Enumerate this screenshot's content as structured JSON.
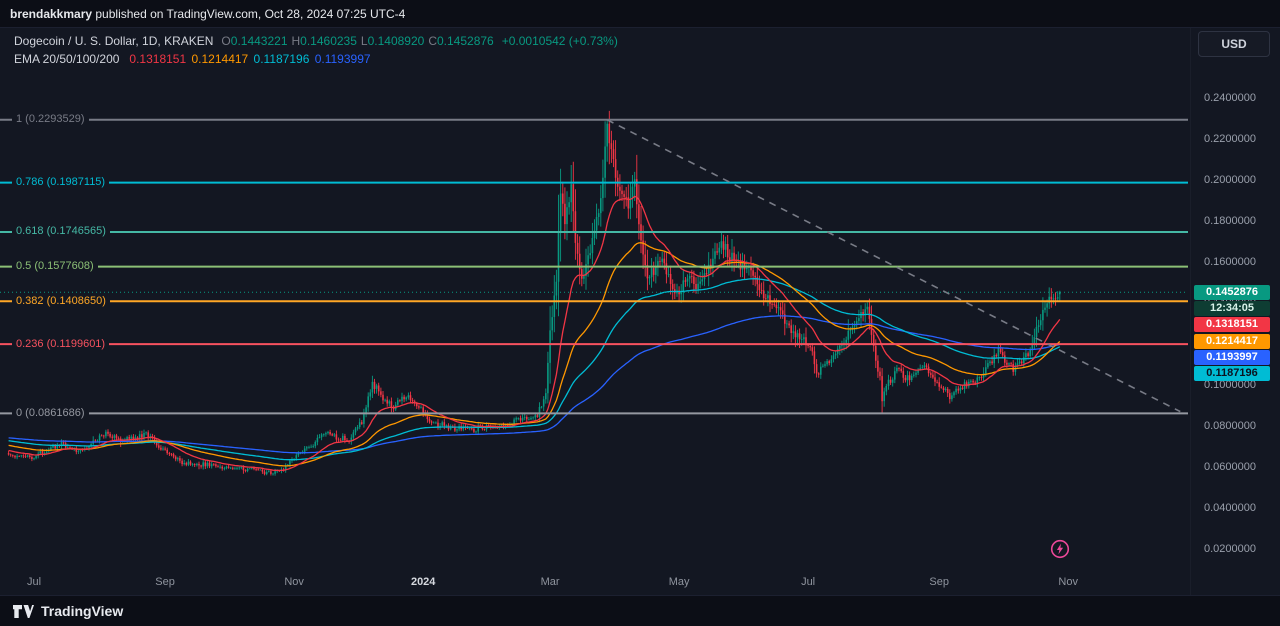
{
  "header": {
    "publisher": "brendakkmary",
    "publish_info": " published on TradingView.com, Oct 28, 2024 07:25 UTC-4"
  },
  "toolbar": {
    "currency_label": "USD"
  },
  "legend": {
    "symbol_title": "Dogecoin / U. S. Dollar, 1D, KRAKEN",
    "ohlc": [
      {
        "label": "O",
        "value": "0.1443221"
      },
      {
        "label": "H",
        "value": "0.1460235"
      },
      {
        "label": "L",
        "value": "0.1408920"
      },
      {
        "label": "C",
        "value": "0.1452876"
      }
    ],
    "change": "+0.0010542 (+0.73%)",
    "ema_label": "EMA 20/50/100/200"
  },
  "price_scale": {
    "last_price": "0.1452876",
    "last_price_bg": "#089981",
    "last_price_fg": "#ffffff",
    "countdown": "12:34:05",
    "countdown_bg": "#0e3d33",
    "countdown_fg": "#d8f3ea"
  },
  "time_scale": {
    "labels": [
      {
        "text": "Jul",
        "date": "2023-07-01",
        "emphasis": false
      },
      {
        "text": "Sep",
        "date": "2023-09-01",
        "emphasis": false
      },
      {
        "text": "Nov",
        "date": "2023-11-01",
        "emphasis": false
      },
      {
        "text": "2024",
        "date": "2024-01-01",
        "emphasis": true
      },
      {
        "text": "Mar",
        "date": "2024-03-01",
        "emphasis": false
      },
      {
        "text": "May",
        "date": "2024-05-01",
        "emphasis": false
      },
      {
        "text": "Jul",
        "date": "2024-07-01",
        "emphasis": false
      },
      {
        "text": "Sep",
        "date": "2024-09-01",
        "emphasis": false
      },
      {
        "text": "Nov",
        "date": "2024-11-01",
        "emphasis": false
      }
    ]
  },
  "footer": {
    "brand": "TradingView"
  },
  "chart_data": {
    "type": "candlestick",
    "symbol": "DOGEUSD",
    "exchange": "KRAKEN",
    "interval": "1D",
    "title": "Dogecoin / U. S. Dollar, 1D, KRAKEN",
    "up_color": "#089981",
    "down_color": "#f23645",
    "last_candle": {
      "open": 0.1443221,
      "high": 0.1460235,
      "low": 0.140892,
      "close": 0.1452876,
      "change_abs": "+0.0010542",
      "change_pct": "+0.73%"
    },
    "emas": [
      {
        "period": 20,
        "value": 0.1318151,
        "color": "#f23645",
        "fg": "#ffffff"
      },
      {
        "period": 50,
        "value": 0.1214417,
        "color": "#ff9800",
        "fg": "#ffffff"
      },
      {
        "period": 100,
        "value": 0.1187196,
        "color": "#00bcd4",
        "fg": "#0b1320"
      },
      {
        "period": 200,
        "value": 0.1193997,
        "color": "#2962ff",
        "fg": "#ffffff"
      }
    ],
    "fib_levels": [
      {
        "label": "1",
        "price": 0.2293529,
        "color": "#787b86"
      },
      {
        "label": "0.786",
        "price": 0.1987115,
        "color": "#00bcd4"
      },
      {
        "label": "0.618",
        "price": 0.1746565,
        "color": "#45b8a5"
      },
      {
        "label": "0.5",
        "price": 0.1577608,
        "color": "#8cc076"
      },
      {
        "label": "0.382",
        "price": 0.140865,
        "color": "#ffa726"
      },
      {
        "label": "0.236",
        "price": 0.1199601,
        "color": "#f7525f"
      },
      {
        "label": "0",
        "price": 0.0861686,
        "color": "#9598a1"
      }
    ],
    "trendline": {
      "from_date": "2024-03-28",
      "from_price": 0.2293529,
      "to_date": "2024-12-24",
      "to_price": 0.087,
      "color": "#787b86",
      "style": "dashed"
    },
    "price_line": {
      "price": 0.1452876,
      "color": "#089981",
      "style": "dotted"
    },
    "y_axis": {
      "ticks": [
        0.24,
        0.22,
        0.2,
        0.18,
        0.16,
        0.14,
        0.12,
        0.1,
        0.08,
        0.06,
        0.04,
        0.02
      ]
    },
    "x_axis": {
      "plot_start": "2023-06-18",
      "plot_end": "2024-10-28"
    },
    "extremes": {
      "peak_date": "2024-03-28",
      "peak_high": 0.2293529,
      "trough_date": "2024-08-05",
      "trough_low": 0.0861686
    },
    "event_marker": {
      "icon": "lightning",
      "date": "2024-10-28",
      "color": "#ec4899"
    },
    "price_path": [
      [
        "2023-03-01",
        0.075
      ],
      [
        "2023-04-10",
        0.083
      ],
      [
        "2023-05-10",
        0.072
      ],
      [
        "2023-06-01",
        0.0705
      ],
      [
        "2023-06-18",
        0.066
      ],
      [
        "2023-07-01",
        0.065
      ],
      [
        "2023-07-08",
        0.069
      ],
      [
        "2023-07-14",
        0.071
      ],
      [
        "2023-07-20",
        0.068
      ],
      [
        "2023-07-26",
        0.07
      ],
      [
        "2023-08-02",
        0.076
      ],
      [
        "2023-08-07",
        0.0755
      ],
      [
        "2023-08-12",
        0.073
      ],
      [
        "2023-08-18",
        0.074
      ],
      [
        "2023-08-23",
        0.0765
      ],
      [
        "2023-08-29",
        0.07
      ],
      [
        "2023-09-03",
        0.067
      ],
      [
        "2023-09-09",
        0.0625
      ],
      [
        "2023-09-15",
        0.0615
      ],
      [
        "2023-09-22",
        0.061
      ],
      [
        "2023-09-29",
        0.06
      ],
      [
        "2023-10-06",
        0.0592
      ],
      [
        "2023-10-13",
        0.0585
      ],
      [
        "2023-10-20",
        0.0572
      ],
      [
        "2023-10-26",
        0.058
      ],
      [
        "2023-10-31",
        0.064
      ],
      [
        "2023-11-06",
        0.069
      ],
      [
        "2023-11-11",
        0.072
      ],
      [
        "2023-11-16",
        0.0765
      ],
      [
        "2023-11-21",
        0.0745
      ],
      [
        "2023-11-27",
        0.0735
      ],
      [
        "2023-12-03",
        0.082
      ],
      [
        "2023-12-08",
        0.1
      ],
      [
        "2023-12-11",
        0.098
      ],
      [
        "2023-12-14",
        0.092
      ],
      [
        "2023-12-18",
        0.0895
      ],
      [
        "2023-12-22",
        0.093
      ],
      [
        "2023-12-26",
        0.094
      ],
      [
        "2023-12-30",
        0.09
      ],
      [
        "2024-01-04",
        0.0815
      ],
      [
        "2024-01-10",
        0.0805
      ],
      [
        "2024-01-16",
        0.079
      ],
      [
        "2024-01-23",
        0.078
      ],
      [
        "2024-01-30",
        0.0795
      ],
      [
        "2024-02-06",
        0.08
      ],
      [
        "2024-02-13",
        0.0825
      ],
      [
        "2024-02-19",
        0.0845
      ],
      [
        "2024-02-24",
        0.0855
      ],
      [
        "2024-02-28",
        0.095
      ],
      [
        "2024-03-01",
        0.125
      ],
      [
        "2024-03-04",
        0.15
      ],
      [
        "2024-03-06",
        0.195
      ],
      [
        "2024-03-08",
        0.18
      ],
      [
        "2024-03-11",
        0.195
      ],
      [
        "2024-03-13",
        0.17
      ],
      [
        "2024-03-16",
        0.152
      ],
      [
        "2024-03-19",
        0.163
      ],
      [
        "2024-03-22",
        0.175
      ],
      [
        "2024-03-25",
        0.19
      ],
      [
        "2024-03-28",
        0.224
      ],
      [
        "2024-03-31",
        0.208
      ],
      [
        "2024-04-03",
        0.193
      ],
      [
        "2024-04-07",
        0.187
      ],
      [
        "2024-04-10",
        0.199
      ],
      [
        "2024-04-13",
        0.17
      ],
      [
        "2024-04-16",
        0.153
      ],
      [
        "2024-04-19",
        0.156
      ],
      [
        "2024-04-23",
        0.161
      ],
      [
        "2024-04-27",
        0.149
      ],
      [
        "2024-05-01",
        0.144
      ],
      [
        "2024-05-05",
        0.153
      ],
      [
        "2024-05-09",
        0.149
      ],
      [
        "2024-05-13",
        0.154
      ],
      [
        "2024-05-17",
        0.162
      ],
      [
        "2024-05-21",
        0.169
      ],
      [
        "2024-05-25",
        0.163
      ],
      [
        "2024-05-29",
        0.159
      ],
      [
        "2024-06-03",
        0.156
      ],
      [
        "2024-06-08",
        0.147
      ],
      [
        "2024-06-13",
        0.14
      ],
      [
        "2024-06-18",
        0.135
      ],
      [
        "2024-06-23",
        0.126
      ],
      [
        "2024-06-28",
        0.123
      ],
      [
        "2024-07-02",
        0.119
      ],
      [
        "2024-07-05",
        0.106
      ],
      [
        "2024-07-09",
        0.109
      ],
      [
        "2024-07-13",
        0.113
      ],
      [
        "2024-07-17",
        0.121
      ],
      [
        "2024-07-21",
        0.126
      ],
      [
        "2024-07-26",
        0.134
      ],
      [
        "2024-07-29",
        0.136
      ],
      [
        "2024-08-01",
        0.119
      ],
      [
        "2024-08-04",
        0.103
      ],
      [
        "2024-08-05",
        0.093
      ],
      [
        "2024-08-08",
        0.101
      ],
      [
        "2024-08-12",
        0.107
      ],
      [
        "2024-08-17",
        0.103
      ],
      [
        "2024-08-22",
        0.106
      ],
      [
        "2024-08-26",
        0.109
      ],
      [
        "2024-08-31",
        0.101
      ],
      [
        "2024-09-04",
        0.0965
      ],
      [
        "2024-09-07",
        0.094
      ],
      [
        "2024-09-11",
        0.099
      ],
      [
        "2024-09-16",
        0.1005
      ],
      [
        "2024-09-21",
        0.105
      ],
      [
        "2024-09-26",
        0.112
      ],
      [
        "2024-09-29",
        0.1175
      ],
      [
        "2024-10-02",
        0.1115
      ],
      [
        "2024-10-06",
        0.108
      ],
      [
        "2024-10-10",
        0.1105
      ],
      [
        "2024-10-14",
        0.1175
      ],
      [
        "2024-10-17",
        0.128
      ],
      [
        "2024-10-20",
        0.1345
      ],
      [
        "2024-10-23",
        0.1405
      ],
      [
        "2024-10-26",
        0.143
      ],
      [
        "2024-10-28",
        0.1452876
      ]
    ]
  }
}
